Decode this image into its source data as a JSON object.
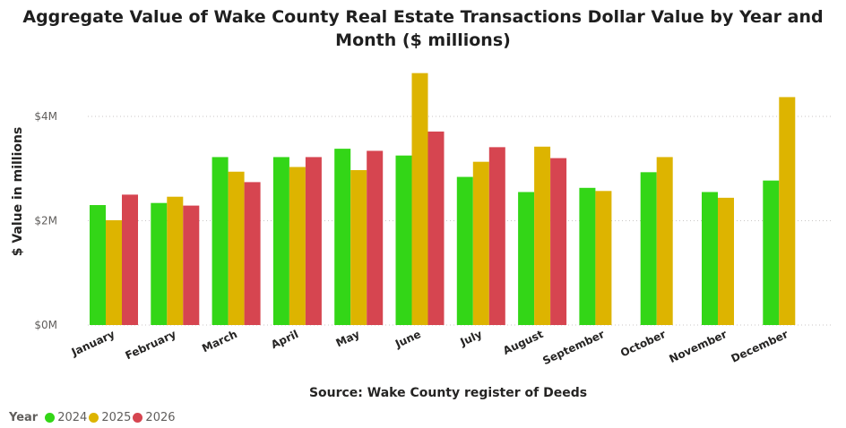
{
  "chart_data": {
    "type": "bar",
    "title": "Aggregate Value of Wake County Real Estate Transactions Dollar Value by Year and Month ($ millions)",
    "ylabel": "$ Value in millions",
    "xlabel": "",
    "source": "Source: Wake County register of Deeds",
    "categories": [
      "January",
      "February",
      "March",
      "April",
      "May",
      "June",
      "July",
      "August",
      "September",
      "October",
      "November",
      "December"
    ],
    "series": [
      {
        "name": "2024",
        "color": "#33d617",
        "values": [
          2.3,
          2.34,
          3.22,
          3.22,
          3.38,
          3.25,
          2.84,
          2.55,
          2.63,
          2.93,
          2.55,
          2.77
        ]
      },
      {
        "name": "2025",
        "color": "#ddb400",
        "values": [
          2.01,
          2.46,
          2.94,
          3.03,
          2.97,
          4.83,
          3.13,
          3.42,
          2.57,
          3.22,
          2.44,
          4.37
        ]
      },
      {
        "name": "2026",
        "color": "#d64550",
        "values": [
          2.5,
          2.29,
          2.74,
          3.22,
          3.34,
          3.71,
          3.41,
          3.2,
          null,
          null,
          null,
          null
        ]
      }
    ],
    "ylim": [
      0,
      5
    ],
    "yticks": [
      {
        "value": 0,
        "label": "$0M"
      },
      {
        "value": 2,
        "label": "$2M"
      },
      {
        "value": 4,
        "label": "$4M"
      }
    ],
    "grid": true,
    "legend": {
      "title": "Year",
      "position": "bottom-left"
    }
  }
}
